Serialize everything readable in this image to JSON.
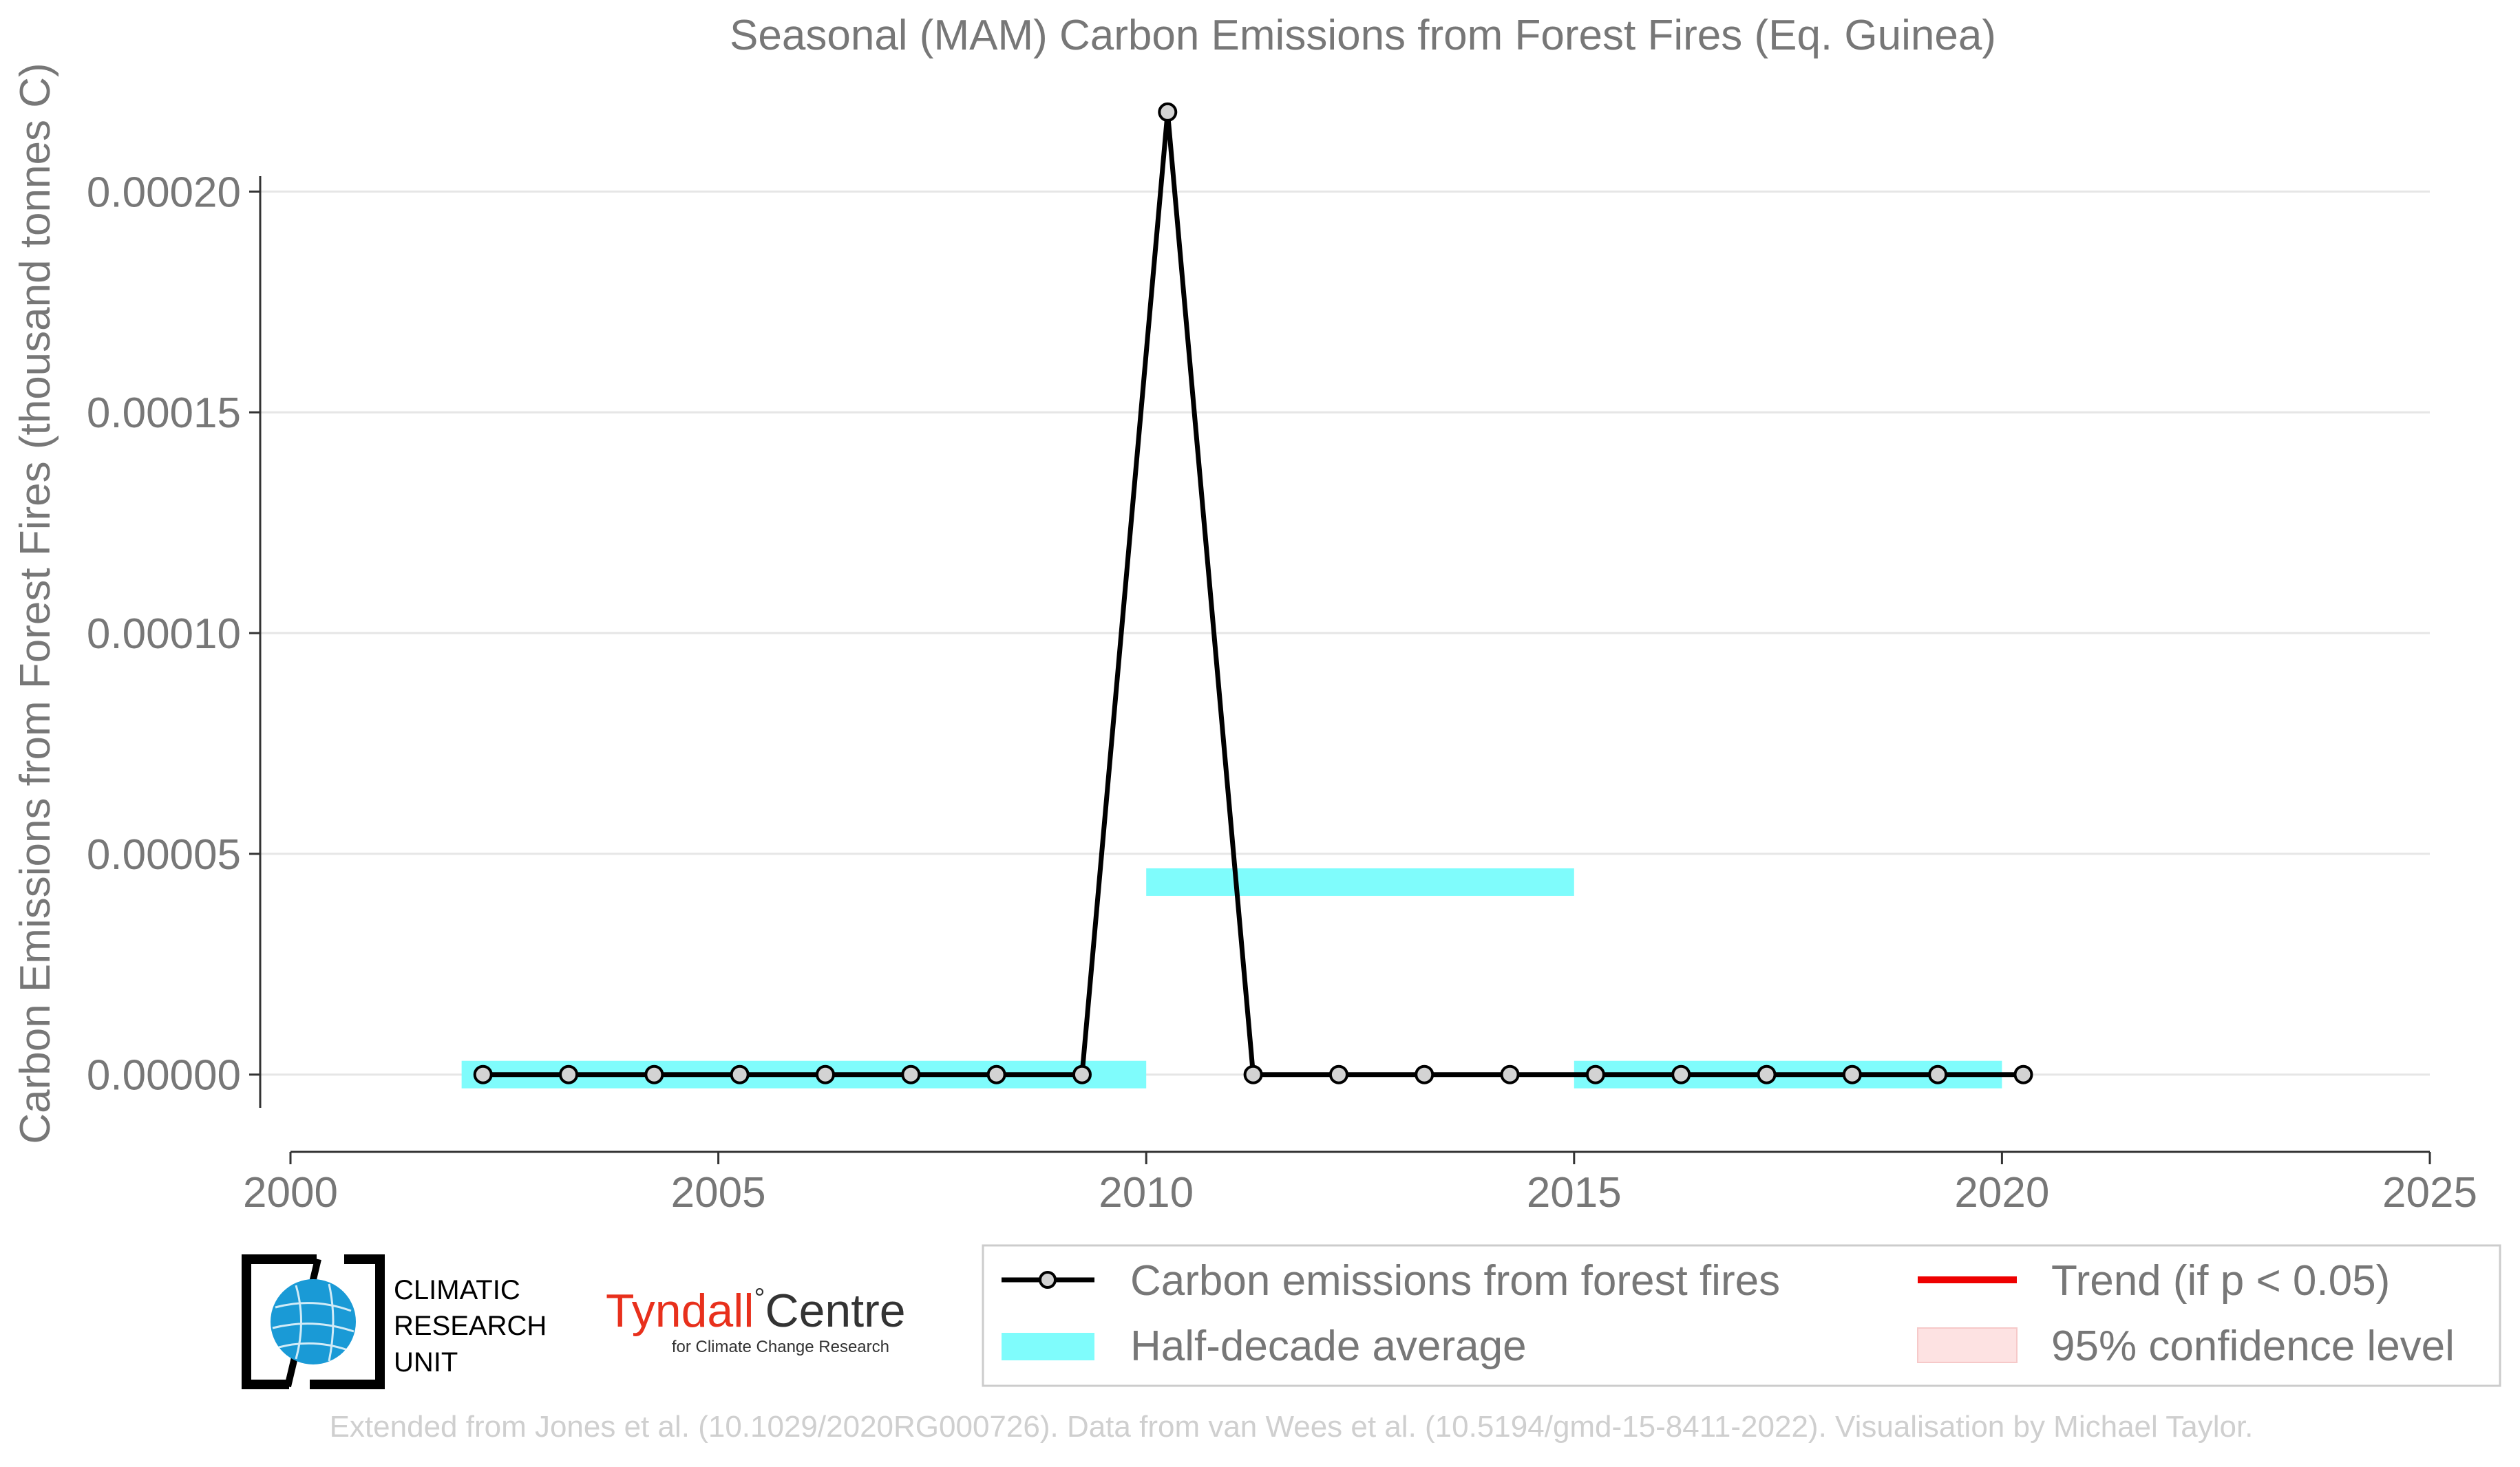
{
  "chart_data": {
    "type": "line",
    "title": "Seasonal (MAM) Carbon Emissions from Forest Fires (Eq. Guinea)",
    "xlabel": "",
    "ylabel": "Carbon Emissions from Forest Fires (thousand tonnes C)",
    "xlim": [
      2000,
      2025
    ],
    "ylim": [
      -1.75e-05,
      0.000225
    ],
    "x_ticks": [
      2000,
      2005,
      2010,
      2015,
      2020,
      2025
    ],
    "y_ticks": [
      0,
      5e-05,
      0.0001,
      0.00015,
      0.0002
    ],
    "y_tick_labels": [
      "0.00000",
      "0.00005",
      "0.00010",
      "0.00015",
      "0.00020"
    ],
    "grid": "horizontal",
    "legend_position": "bottom-right",
    "series": [
      {
        "name": "Carbon emissions from forest fires",
        "color": "#000000",
        "x": [
          2002.25,
          2003.25,
          2004.25,
          2005.25,
          2006.25,
          2007.25,
          2008.25,
          2009.25,
          2010.25,
          2011.25,
          2012.25,
          2013.25,
          2014.25,
          2015.25,
          2016.25,
          2017.25,
          2018.25,
          2019.25,
          2020.25
        ],
        "values": [
          0,
          0,
          0,
          0,
          0,
          0,
          0,
          0,
          0.000218,
          0,
          0,
          0,
          0,
          0,
          0,
          0,
          0,
          0,
          0
        ]
      }
    ],
    "half_decade_average": {
      "name": "Half-decade average",
      "color": "#7ffcfc",
      "segments": [
        {
          "x_start": 2002,
          "x_end": 2010,
          "value": 0
        },
        {
          "x_start": 2010,
          "x_end": 2015,
          "value": 4.36e-05
        },
        {
          "x_start": 2015,
          "x_end": 2020,
          "value": 0
        }
      ]
    },
    "legend": [
      {
        "label": "Carbon emissions from forest fires",
        "kind": "line-marker",
        "color": "#000000"
      },
      {
        "label": "Trend (if p < 0.05)",
        "kind": "line",
        "color": "#ee0000"
      },
      {
        "label": "Half-decade average",
        "kind": "band",
        "color": "#7ffcfc"
      },
      {
        "label": "95% confidence level",
        "kind": "band",
        "color": "#fde2e2"
      }
    ]
  },
  "logos": {
    "cru": {
      "line1": "CLIMATIC",
      "line2": "RESEARCH",
      "line3": "UNIT"
    },
    "tyndall": {
      "name_red": "Tyndall",
      "name_dark": "Centre",
      "subtitle": "for Climate Change Research"
    }
  },
  "credit": "Extended from Jones et al. (10.1029/2020RG000726). Data from van Wees et al. (10.5194/gmd-15-8411-2022). Visualisation by Michael Taylor."
}
